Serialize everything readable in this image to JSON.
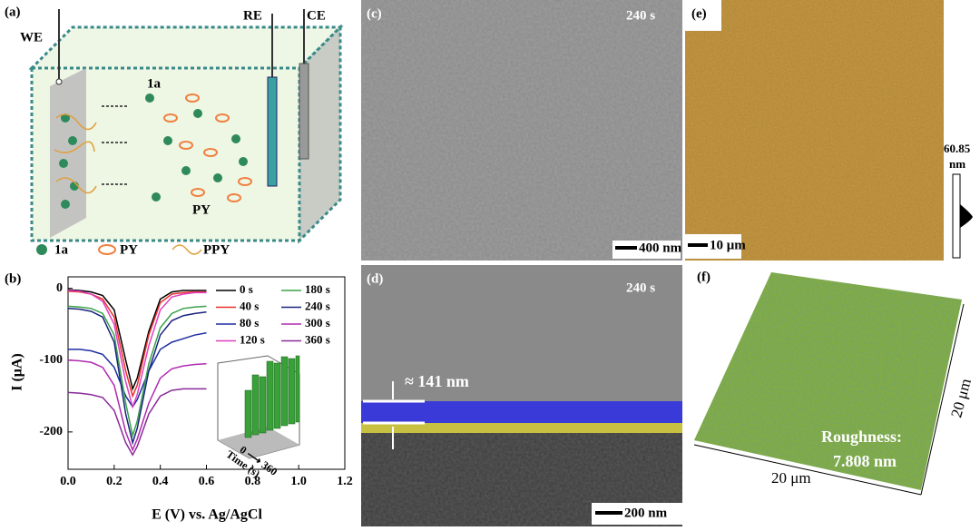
{
  "panels": {
    "a": {
      "label": "(a)",
      "we": "WE",
      "re": "RE",
      "ce": "CE",
      "species_1a": "1a",
      "species_py": "PY",
      "legend": [
        "1a",
        "PY",
        "PPY"
      ]
    },
    "c": {
      "label": "(c)",
      "time": "240 s",
      "scale": "400 nm"
    },
    "e": {
      "label": "(e)",
      "colorbar_max": "60.85",
      "colorbar_unit": "nm",
      "scale": "10 μm"
    },
    "d": {
      "label": "(d)",
      "time": "240 s",
      "thickness": "≈ 141 nm",
      "scale": "200 nm"
    },
    "f": {
      "label": "(f)",
      "roughness_title": "Roughness:",
      "roughness_value": "7.808 nm",
      "x_size": "20 μm",
      "y_size": "20 μm"
    },
    "b": {
      "label": "(b)",
      "inset_ylabel": "Time (s)",
      "inset_range": "0 ⟶ 360"
    }
  },
  "chart_data": {
    "type": "line",
    "xlabel": "E (V) vs. Ag/AgCl",
    "ylabel": "I (μA)",
    "x": [
      0.0,
      0.05,
      0.1,
      0.15,
      0.2,
      0.25,
      0.28,
      0.3,
      0.35,
      0.4,
      0.45,
      0.5,
      0.55,
      0.6
    ],
    "xlim": [
      0,
      1.2
    ],
    "xticks": [
      {
        "value": 0,
        "label": "0.0"
      },
      {
        "value": 0.2,
        "label": "0.2"
      },
      {
        "value": 0.4,
        "label": "0.4"
      },
      {
        "value": 0.6,
        "label": "0.6"
      },
      {
        "value": 0.8,
        "label": "0.8"
      },
      {
        "value": 1,
        "label": "1.0"
      },
      {
        "value": 1.2,
        "label": "1.2"
      }
    ],
    "ylim": [
      -252,
      16
    ],
    "yticks": [
      0,
      -100,
      -200
    ],
    "series": [
      {
        "name": "0 s",
        "color": "#000000",
        "values": [
          -2,
          -3,
          -5,
          -10,
          -30,
          -100,
          -140,
          -125,
          -60,
          -15,
          -5,
          -3,
          -3,
          -3
        ]
      },
      {
        "name": "40 s",
        "color": "#e8312c",
        "values": [
          -4,
          -5,
          -8,
          -15,
          -40,
          -115,
          -150,
          -135,
          -65,
          -20,
          -8,
          -6,
          -5,
          -5
        ]
      },
      {
        "name": "80 s",
        "color": "#1e2ea0",
        "values": [
          -85,
          -85,
          -87,
          -92,
          -110,
          -150,
          -165,
          -155,
          -115,
          -85,
          -75,
          -70,
          -65,
          -62
        ]
      },
      {
        "name": "120 s",
        "color": "#e040c0",
        "values": [
          -3,
          -4,
          -8,
          -18,
          -50,
          -130,
          -165,
          -148,
          -80,
          -30,
          -12,
          -8,
          -6,
          -6
        ]
      },
      {
        "name": "180 s",
        "color": "#3aa04a",
        "values": [
          -25,
          -26,
          -28,
          -35,
          -65,
          -160,
          -205,
          -185,
          -105,
          -55,
          -35,
          -28,
          -26,
          -25
        ]
      },
      {
        "name": "240 s",
        "color": "#1a237e",
        "values": [
          -28,
          -29,
          -32,
          -40,
          -75,
          -175,
          -215,
          -195,
          -115,
          -65,
          -45,
          -38,
          -35,
          -33
        ]
      },
      {
        "name": "300 s",
        "color": "#b02ab0",
        "values": [
          -100,
          -101,
          -103,
          -110,
          -135,
          -200,
          -225,
          -210,
          -160,
          -125,
          -112,
          -108,
          -106,
          -105
        ]
      },
      {
        "name": "360 s",
        "color": "#8a2a9a",
        "values": [
          -145,
          -146,
          -148,
          -152,
          -170,
          -215,
          -232,
          -220,
          -175,
          -150,
          -142,
          -140,
          -140,
          -140
        ]
      }
    ]
  }
}
